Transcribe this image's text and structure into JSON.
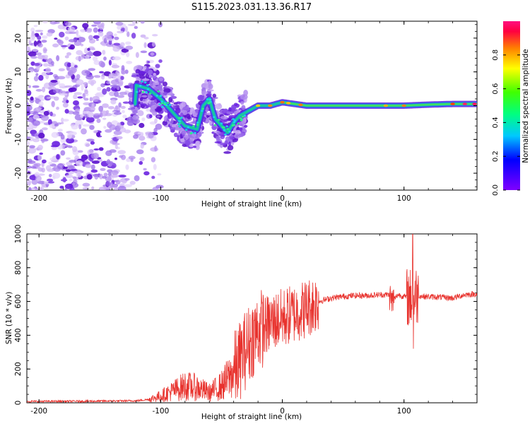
{
  "title": "S115.2023.031.13.36.R17",
  "colors": {
    "snr_line": "#e8322d",
    "ridge_core": "#18c8a0",
    "scatter": "#7a2ee0"
  },
  "chart_data": [
    {
      "type": "heatmap",
      "xlabel": "Height of straight line (km)",
      "ylabel": "Frequency (Hz)",
      "xlim": [
        -210,
        160
      ],
      "ylim": [
        -25,
        25
      ],
      "xticks": [
        -200,
        -100,
        0,
        100
      ],
      "yticks": [
        -20,
        -10,
        0,
        10,
        20
      ],
      "colorbar": {
        "label": "Normalized spectral amplitude",
        "range": [
          0,
          1
        ],
        "ticks": [
          0.0,
          0.2,
          0.4,
          0.6,
          0.8
        ]
      },
      "ridge_path": [
        [
          -120,
          6
        ],
        [
          -110,
          5
        ],
        [
          -100,
          2
        ],
        [
          -90,
          -2
        ],
        [
          -80,
          -6
        ],
        [
          -70,
          -7
        ],
        [
          -65,
          0
        ],
        [
          -60,
          2
        ],
        [
          -55,
          -4
        ],
        [
          -50,
          -6
        ],
        [
          -45,
          -8
        ],
        [
          -40,
          -5
        ],
        [
          -35,
          -3
        ],
        [
          -30,
          -2
        ],
        [
          -20,
          0
        ],
        [
          -10,
          0
        ],
        [
          0,
          1
        ],
        [
          10,
          0.5
        ],
        [
          20,
          0
        ],
        [
          40,
          0
        ],
        [
          60,
          0
        ],
        [
          80,
          0
        ],
        [
          100,
          0
        ],
        [
          120,
          0.3
        ],
        [
          140,
          0.5
        ],
        [
          160,
          0.5
        ]
      ]
    },
    {
      "type": "line",
      "xlabel": "Height of straight line (km)",
      "ylabel": "SNR (10 * v/v)",
      "xlim": [
        -210,
        160
      ],
      "ylim": [
        0,
        1000
      ],
      "xticks": [
        -200,
        -100,
        0,
        100
      ],
      "yticks": [
        0,
        200,
        400,
        600,
        800,
        1000
      ],
      "series": [
        {
          "values": [
            [
              -210,
              8
            ],
            [
              -180,
              9
            ],
            [
              -150,
              10
            ],
            [
              -120,
              12
            ],
            [
              -110,
              20
            ],
            [
              -100,
              40
            ],
            [
              -90,
              70
            ],
            [
              -80,
              100
            ],
            [
              -70,
              90
            ],
            [
              -60,
              60
            ],
            [
              -50,
              100
            ],
            [
              -40,
              180
            ],
            [
              -35,
              250
            ],
            [
              -30,
              320
            ],
            [
              -25,
              380
            ],
            [
              -20,
              430
            ],
            [
              -15,
              450
            ],
            [
              -10,
              470
            ],
            [
              -5,
              490
            ],
            [
              0,
              500
            ],
            [
              10,
              530
            ],
            [
              20,
              560
            ],
            [
              30,
              600
            ],
            [
              40,
              620
            ],
            [
              50,
              630
            ],
            [
              60,
              635
            ],
            [
              70,
              635
            ],
            [
              80,
              640
            ],
            [
              88,
              640
            ],
            [
              90,
              600
            ],
            [
              95,
              640
            ],
            [
              100,
              630
            ],
            [
              105,
              620
            ],
            [
              108,
              640
            ],
            [
              115,
              630
            ],
            [
              130,
              625
            ],
            [
              140,
              620
            ],
            [
              150,
              640
            ],
            [
              160,
              645
            ]
          ]
        }
      ]
    }
  ]
}
